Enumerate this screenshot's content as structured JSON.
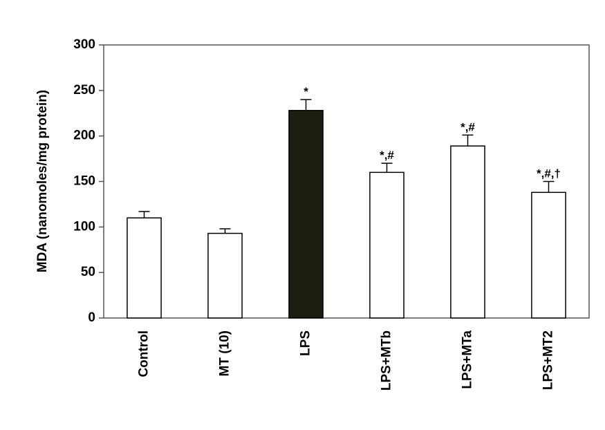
{
  "chart_data": {
    "type": "bar",
    "y_label": "MDA (nanomoles/mg protein)",
    "categories": [
      "Control",
      "MT (10)",
      "LPS",
      "LPS+MTb",
      "LPS+MTa",
      "LPS+MT2"
    ],
    "values": [
      110,
      93,
      228,
      160,
      189,
      138
    ],
    "errors": [
      7,
      5,
      12,
      10,
      12,
      12
    ],
    "annotations": [
      null,
      null,
      "*",
      "*,#",
      "*,#",
      "*,#,†"
    ],
    "colors": [
      "#ffffff",
      "#ffffff",
      "#1a1f10",
      "#ffffff",
      "#ffffff",
      "#ffffff"
    ],
    "ylim": [
      0,
      300
    ],
    "yticks": [
      0,
      50,
      100,
      150,
      200,
      250,
      300
    ]
  }
}
